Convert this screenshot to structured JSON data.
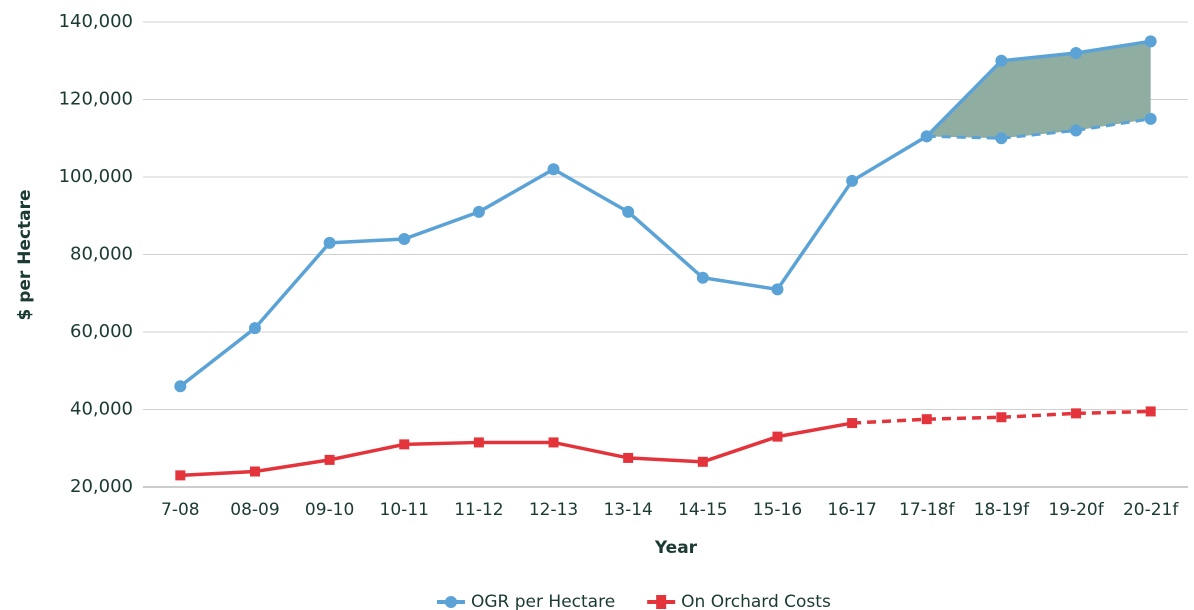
{
  "chart_data": {
    "type": "line",
    "categories": [
      "7-08",
      "08-09",
      "09-10",
      "10-11",
      "11-12",
      "12-13",
      "13-14",
      "14-15",
      "15-16",
      "16-17",
      "17-18f",
      "18-19f",
      "19-20f",
      "20-21f"
    ],
    "series": [
      {
        "name": "OGR per Hectare",
        "color": "#5ba3d6",
        "marker": "circle",
        "values": [
          46000,
          61000,
          83000,
          84000,
          91000,
          102000,
          91000,
          74000,
          71000,
          99000,
          110500,
          130000,
          132000,
          135000
        ],
        "range_low": [
          null,
          null,
          null,
          null,
          null,
          null,
          null,
          null,
          null,
          null,
          110500,
          110000,
          112000,
          115000
        ],
        "range_fill": "#8fada0"
      },
      {
        "name": "On Orchard Costs",
        "color": "#e3343c",
        "marker": "square",
        "dashed_from": 9,
        "values": [
          23000,
          24000,
          27000,
          31000,
          31500,
          31500,
          27500,
          26500,
          33000,
          36500,
          37500,
          38000,
          39000,
          39500
        ]
      }
    ],
    "ylim": [
      20000,
      140000
    ],
    "yticks": [
      {
        "value": 20000,
        "label": "20,000"
      },
      {
        "value": 40000,
        "label": "40,000"
      },
      {
        "value": 60000,
        "label": "60,000"
      },
      {
        "value": 80000,
        "label": "80,000"
      },
      {
        "value": 100000,
        "label": "100,000"
      },
      {
        "value": 120000,
        "label": "120,000"
      },
      {
        "value": 140000,
        "label": "140,000"
      }
    ],
    "x_label": "Year",
    "y_label": "$ per Hectare",
    "grid": true,
    "legend": "bottom"
  }
}
